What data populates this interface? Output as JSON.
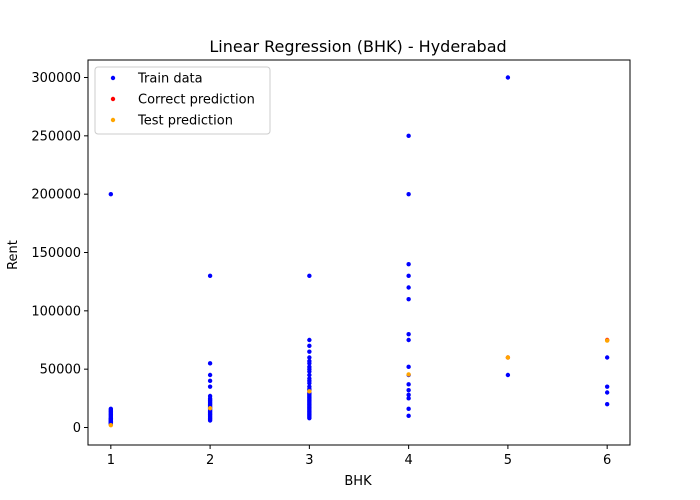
{
  "chart_data": {
    "type": "scatter",
    "title": "Linear Regression (BHK) - Hyderabad",
    "xlabel": "BHK",
    "ylabel": "Rent",
    "xlim": [
      0.77,
      6.23
    ],
    "ylim": [
      -15000,
      315000
    ],
    "xticks": [
      1,
      2,
      3,
      4,
      5,
      6
    ],
    "yticks": [
      0,
      50000,
      100000,
      150000,
      200000,
      250000,
      300000
    ],
    "grid": false,
    "legend_position": "top-left",
    "series": [
      {
        "name": "Train data",
        "color": "#0000ff",
        "points": [
          [
            1,
            200000
          ],
          [
            1,
            16000
          ],
          [
            1,
            15000
          ],
          [
            1,
            14000
          ],
          [
            1,
            13000
          ],
          [
            1,
            12000
          ],
          [
            1,
            11000
          ],
          [
            1,
            10000
          ],
          [
            1,
            9000
          ],
          [
            1,
            8000
          ],
          [
            1,
            7500
          ],
          [
            1,
            7000
          ],
          [
            1,
            6500
          ],
          [
            1,
            6000
          ],
          [
            1,
            5500
          ],
          [
            1,
            5000
          ],
          [
            1,
            4500
          ],
          [
            1,
            4000
          ],
          [
            1,
            3500
          ],
          [
            1,
            3000
          ],
          [
            2,
            130000
          ],
          [
            2,
            55000
          ],
          [
            2,
            45000
          ],
          [
            2,
            40000
          ],
          [
            2,
            35000
          ],
          [
            2,
            27000
          ],
          [
            2,
            25000
          ],
          [
            2,
            24000
          ],
          [
            2,
            23000
          ],
          [
            2,
            22000
          ],
          [
            2,
            21000
          ],
          [
            2,
            20000
          ],
          [
            2,
            19000
          ],
          [
            2,
            18000
          ],
          [
            2,
            17000
          ],
          [
            2,
            16000
          ],
          [
            2,
            15000
          ],
          [
            2,
            14000
          ],
          [
            2,
            13000
          ],
          [
            2,
            12000
          ],
          [
            2,
            11000
          ],
          [
            2,
            10000
          ],
          [
            2,
            9000
          ],
          [
            2,
            8000
          ],
          [
            2,
            7000
          ],
          [
            2,
            6000
          ],
          [
            3,
            130000
          ],
          [
            3,
            75000
          ],
          [
            3,
            70000
          ],
          [
            3,
            65000
          ],
          [
            3,
            60000
          ],
          [
            3,
            57000
          ],
          [
            3,
            55000
          ],
          [
            3,
            52000
          ],
          [
            3,
            50000
          ],
          [
            3,
            48000
          ],
          [
            3,
            45000
          ],
          [
            3,
            42000
          ],
          [
            3,
            40000
          ],
          [
            3,
            38000
          ],
          [
            3,
            35000
          ],
          [
            3,
            33000
          ],
          [
            3,
            32000
          ],
          [
            3,
            30000
          ],
          [
            3,
            29000
          ],
          [
            3,
            28000
          ],
          [
            3,
            27000
          ],
          [
            3,
            26000
          ],
          [
            3,
            25000
          ],
          [
            3,
            24000
          ],
          [
            3,
            23000
          ],
          [
            3,
            22000
          ],
          [
            3,
            21000
          ],
          [
            3,
            20000
          ],
          [
            3,
            19000
          ],
          [
            3,
            18000
          ],
          [
            3,
            17000
          ],
          [
            3,
            16000
          ],
          [
            3,
            15000
          ],
          [
            3,
            14000
          ],
          [
            3,
            13000
          ],
          [
            3,
            12000
          ],
          [
            3,
            11000
          ],
          [
            3,
            10000
          ],
          [
            3,
            9000
          ],
          [
            3,
            8000
          ],
          [
            4,
            250000
          ],
          [
            4,
            200000
          ],
          [
            4,
            140000
          ],
          [
            4,
            130000
          ],
          [
            4,
            120000
          ],
          [
            4,
            110000
          ],
          [
            4,
            80000
          ],
          [
            4,
            75000
          ],
          [
            4,
            52000
          ],
          [
            4,
            45000
          ],
          [
            4,
            37000
          ],
          [
            4,
            32000
          ],
          [
            4,
            28000
          ],
          [
            4,
            25000
          ],
          [
            4,
            16000
          ],
          [
            4,
            10000
          ],
          [
            5,
            300000
          ],
          [
            5,
            45000
          ],
          [
            6,
            60000
          ],
          [
            6,
            35000
          ],
          [
            6,
            30000
          ],
          [
            6,
            20000
          ]
        ]
      },
      {
        "name": "Correct prediction",
        "color": "#ff0000",
        "points": [
          [
            5,
            60000
          ],
          [
            6,
            75000
          ]
        ]
      },
      {
        "name": "Test prediction",
        "color": "#ffa500",
        "points": [
          [
            1,
            2000
          ],
          [
            2,
            16500
          ],
          [
            3,
            31000
          ],
          [
            4,
            45500
          ],
          [
            5,
            60000
          ],
          [
            6,
            74500
          ]
        ]
      }
    ]
  }
}
